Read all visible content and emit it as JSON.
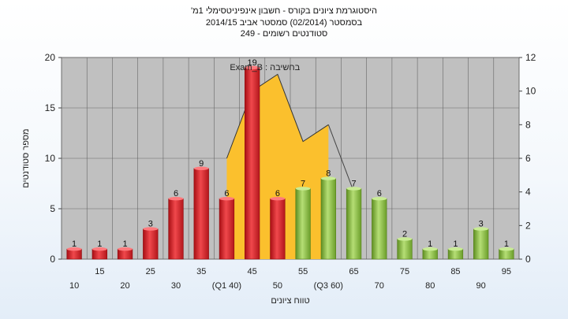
{
  "chart_data": {
    "type": "bar",
    "title_lines": [
      "היסטוגרמת ציונים בקורס - חשבון אינפיניטסימלי 1מ'",
      "בסמסטר  (02/2014)  סמסטר אביב 2014/15",
      "סטודנטים רשומים - 249"
    ],
    "xlabel": "טווח ציונים",
    "ylabel": "מספר סטודנטים",
    "ylim": [
      0,
      20
    ],
    "y_ticks": [
      0,
      5,
      10,
      15,
      20
    ],
    "y2lim": [
      0,
      12
    ],
    "y2_ticks": [
      0,
      2,
      4,
      6,
      8,
      10,
      12
    ],
    "grid": true,
    "categories": [
      "10",
      "15",
      "20",
      "25",
      "30",
      "35",
      "(Q1 40)",
      "45",
      "50",
      "55",
      "(Q3 60)",
      "65",
      "70",
      "75",
      "80",
      "85",
      "90",
      "95"
    ],
    "values": [
      1,
      1,
      1,
      3,
      6,
      9,
      6,
      19,
      6,
      7,
      8,
      7,
      6,
      2,
      1,
      1,
      3,
      1
    ],
    "bar_colors": [
      "red",
      "red",
      "red",
      "red",
      "red",
      "red",
      "red",
      "red",
      "red",
      "green",
      "green",
      "green",
      "green",
      "green",
      "green",
      "green",
      "green",
      "green"
    ],
    "series2": {
      "name": "Exam_B : בחשיבה",
      "points": [
        [
          40,
          6
        ],
        [
          45,
          10
        ],
        [
          50,
          11
        ],
        [
          55,
          7
        ],
        [
          60,
          8
        ]
      ],
      "extra_line": [
        [
          60,
          8
        ],
        [
          65,
          4
        ]
      ]
    },
    "colors": {
      "red": "#e8262b",
      "green": "#8cc63f",
      "area": "#fbc02d",
      "plot_bg": "#c0c0c0"
    }
  }
}
